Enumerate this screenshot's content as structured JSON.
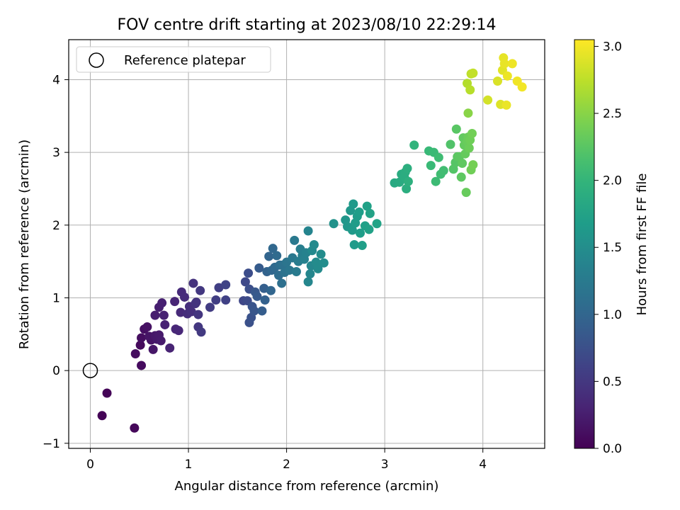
{
  "chart_data": {
    "type": "scatter",
    "title": "FOV centre drift starting at 2023/08/10 22:29:14",
    "xlabel": "Angular distance from reference (arcmin)",
    "ylabel": "Rotation from reference (arcmin)",
    "xlim": [
      -0.22,
      4.63
    ],
    "ylim": [
      -1.07,
      4.55
    ],
    "xticks": [
      0,
      1,
      2,
      3,
      4
    ],
    "yticks": [
      -1,
      0,
      1,
      2,
      3,
      4
    ],
    "grid": true,
    "legend": {
      "position": "top-left",
      "entries": [
        "Reference platepar"
      ]
    },
    "reference_point": {
      "x": 0,
      "y": 0,
      "label": "Reference platepar"
    },
    "colorbar": {
      "label": "Hours from first FF file",
      "colormap": "viridis",
      "range": [
        0.0,
        3.05
      ],
      "ticks": [
        "0.0",
        "0.5",
        "1.0",
        "1.5",
        "2.0",
        "2.5",
        "3.0"
      ]
    },
    "points": [
      [
        0.12,
        -0.62,
        0.02
      ],
      [
        0.17,
        -0.31,
        0.03
      ],
      [
        0.45,
        -0.79,
        0.06
      ],
      [
        0.51,
        0.35,
        0.08
      ],
      [
        0.52,
        0.07,
        0.09
      ],
      [
        0.46,
        0.23,
        0.1
      ],
      [
        0.52,
        0.45,
        0.11
      ],
      [
        0.55,
        0.57,
        0.12
      ],
      [
        0.58,
        0.6,
        0.14
      ],
      [
        0.62,
        0.42,
        0.16
      ],
      [
        0.6,
        0.47,
        0.17
      ],
      [
        0.64,
        0.29,
        0.18
      ],
      [
        0.66,
        0.48,
        0.2
      ],
      [
        0.68,
        0.43,
        0.21
      ],
      [
        0.7,
        0.49,
        0.22
      ],
      [
        0.72,
        0.41,
        0.23
      ],
      [
        0.66,
        0.76,
        0.25
      ],
      [
        0.7,
        0.87,
        0.26
      ],
      [
        0.73,
        0.93,
        0.27
      ],
      [
        0.75,
        0.76,
        0.28
      ],
      [
        0.76,
        0.63,
        0.29
      ],
      [
        0.81,
        0.31,
        0.3
      ],
      [
        0.86,
        0.95,
        0.32
      ],
      [
        0.87,
        0.57,
        0.33
      ],
      [
        0.9,
        0.55,
        0.34
      ],
      [
        0.92,
        0.8,
        0.36
      ],
      [
        0.93,
        1.08,
        0.37
      ],
      [
        0.96,
        1.01,
        0.38
      ],
      [
        0.99,
        0.78,
        0.4
      ],
      [
        1.01,
        0.88,
        0.41
      ],
      [
        1.03,
        0.81,
        0.42
      ],
      [
        1.05,
        1.2,
        0.44
      ],
      [
        1.07,
        0.92,
        0.45
      ],
      [
        1.08,
        0.94,
        0.46
      ],
      [
        1.1,
        0.77,
        0.48
      ],
      [
        1.1,
        0.6,
        0.49
      ],
      [
        1.12,
        1.1,
        0.5
      ],
      [
        1.13,
        0.53,
        0.52
      ],
      [
        1.22,
        0.87,
        0.54
      ],
      [
        1.28,
        0.97,
        0.56
      ],
      [
        1.31,
        1.14,
        0.58
      ],
      [
        1.38,
        0.97,
        0.6
      ],
      [
        1.38,
        1.18,
        0.62
      ],
      [
        1.56,
        0.96,
        0.66
      ],
      [
        1.58,
        1.22,
        0.68
      ],
      [
        1.6,
        0.96,
        0.7
      ],
      [
        1.61,
        1.34,
        0.72
      ],
      [
        1.62,
        1.12,
        0.74
      ],
      [
        1.62,
        0.66,
        0.76
      ],
      [
        1.64,
        0.73,
        0.78
      ],
      [
        1.65,
        0.88,
        0.8
      ],
      [
        1.67,
        0.82,
        0.82
      ],
      [
        1.68,
        1.08,
        0.84
      ],
      [
        1.7,
        1.02,
        0.86
      ],
      [
        1.72,
        1.41,
        0.88
      ],
      [
        1.75,
        0.82,
        0.9
      ],
      [
        1.77,
        1.13,
        0.92
      ],
      [
        1.78,
        0.97,
        0.94
      ],
      [
        1.8,
        1.36,
        0.96
      ],
      [
        1.82,
        1.57,
        0.98
      ],
      [
        1.84,
        1.1,
        1.0
      ],
      [
        1.85,
        1.38,
        1.01
      ],
      [
        1.86,
        1.68,
        1.02
      ],
      [
        1.88,
        1.42,
        1.04
      ],
      [
        1.9,
        1.58,
        1.06
      ],
      [
        1.92,
        1.31,
        1.08
      ],
      [
        1.93,
        1.45,
        1.1
      ],
      [
        1.95,
        1.2,
        1.12
      ],
      [
        1.96,
        1.45,
        1.14
      ],
      [
        1.98,
        1.35,
        1.16
      ],
      [
        2.0,
        1.49,
        1.18
      ],
      [
        2.03,
        1.38,
        1.2
      ],
      [
        2.06,
        1.55,
        1.22
      ],
      [
        2.08,
        1.79,
        1.24
      ],
      [
        2.1,
        1.36,
        1.26
      ],
      [
        2.12,
        1.5,
        1.28
      ],
      [
        2.14,
        1.67,
        1.3
      ],
      [
        2.16,
        1.58,
        1.32
      ],
      [
        2.18,
        1.53,
        1.34
      ],
      [
        2.2,
        1.62,
        1.36
      ],
      [
        2.22,
        1.92,
        1.38
      ],
      [
        2.22,
        1.22,
        1.4
      ],
      [
        2.24,
        1.33,
        1.41
      ],
      [
        2.25,
        1.44,
        1.42
      ],
      [
        2.26,
        1.65,
        1.44
      ],
      [
        2.28,
        1.73,
        1.45
      ],
      [
        2.3,
        1.49,
        1.46
      ],
      [
        2.32,
        1.4,
        1.47
      ],
      [
        2.35,
        1.6,
        1.48
      ],
      [
        2.38,
        1.48,
        1.49
      ],
      [
        2.48,
        2.02,
        1.55
      ],
      [
        2.6,
        2.07,
        1.6
      ],
      [
        2.62,
        1.98,
        1.61
      ],
      [
        2.65,
        2.2,
        1.62
      ],
      [
        2.67,
        1.93,
        1.64
      ],
      [
        2.68,
        2.29,
        1.65
      ],
      [
        2.69,
        1.73,
        1.66
      ],
      [
        2.7,
        2.03,
        1.67
      ],
      [
        2.72,
        2.12,
        1.68
      ],
      [
        2.74,
        2.18,
        1.69
      ],
      [
        2.75,
        1.89,
        1.7
      ],
      [
        2.77,
        1.72,
        1.71
      ],
      [
        2.8,
        1.99,
        1.72
      ],
      [
        2.82,
        2.26,
        1.73
      ],
      [
        2.84,
        1.94,
        1.74
      ],
      [
        2.85,
        2.16,
        1.75
      ],
      [
        2.92,
        2.02,
        1.76
      ],
      [
        3.1,
        2.58,
        1.85
      ],
      [
        3.15,
        2.59,
        1.86
      ],
      [
        3.17,
        2.7,
        1.87
      ],
      [
        3.2,
        2.66,
        1.88
      ],
      [
        3.21,
        2.73,
        1.89
      ],
      [
        3.22,
        2.5,
        1.9
      ],
      [
        3.23,
        2.78,
        1.91
      ],
      [
        3.24,
        2.6,
        1.92
      ],
      [
        3.3,
        3.1,
        1.98
      ],
      [
        3.45,
        3.02,
        2.05
      ],
      [
        3.47,
        2.82,
        2.06
      ],
      [
        3.5,
        3.0,
        2.07
      ],
      [
        3.52,
        2.6,
        2.08
      ],
      [
        3.55,
        2.93,
        2.09
      ],
      [
        3.57,
        2.7,
        2.1
      ],
      [
        3.6,
        2.75,
        2.11
      ],
      [
        3.67,
        3.11,
        2.2
      ],
      [
        3.7,
        2.77,
        2.22
      ],
      [
        3.72,
        2.86,
        2.23
      ],
      [
        3.73,
        3.32,
        2.25
      ],
      [
        3.74,
        2.94,
        2.26
      ],
      [
        3.76,
        2.94,
        2.27
      ],
      [
        3.78,
        2.66,
        2.28
      ],
      [
        3.79,
        2.85,
        2.29
      ],
      [
        3.8,
        3.2,
        2.3
      ],
      [
        3.81,
        3.1,
        2.31
      ],
      [
        3.82,
        2.98,
        2.32
      ],
      [
        3.83,
        2.45,
        2.33
      ],
      [
        3.84,
        3.15,
        2.34
      ],
      [
        3.85,
        3.21,
        2.35
      ],
      [
        3.86,
        3.06,
        2.36
      ],
      [
        3.87,
        3.17,
        2.37
      ],
      [
        3.88,
        2.76,
        2.38
      ],
      [
        3.89,
        3.26,
        2.39
      ],
      [
        3.9,
        2.83,
        2.4
      ],
      [
        3.85,
        3.54,
        2.5
      ],
      [
        3.84,
        3.95,
        2.7
      ],
      [
        3.87,
        3.86,
        2.72
      ],
      [
        3.88,
        4.08,
        2.75
      ],
      [
        3.9,
        4.09,
        2.77
      ],
      [
        4.05,
        3.72,
        2.85
      ],
      [
        4.15,
        3.98,
        2.88
      ],
      [
        4.18,
        3.66,
        2.9
      ],
      [
        4.2,
        4.13,
        2.92
      ],
      [
        4.21,
        4.3,
        2.94
      ],
      [
        4.22,
        4.22,
        2.95
      ],
      [
        4.24,
        3.65,
        2.96
      ],
      [
        4.25,
        4.05,
        2.97
      ],
      [
        4.3,
        4.22,
        2.98
      ],
      [
        4.35,
        3.98,
        2.99
      ],
      [
        4.4,
        3.9,
        3.0
      ]
    ]
  }
}
